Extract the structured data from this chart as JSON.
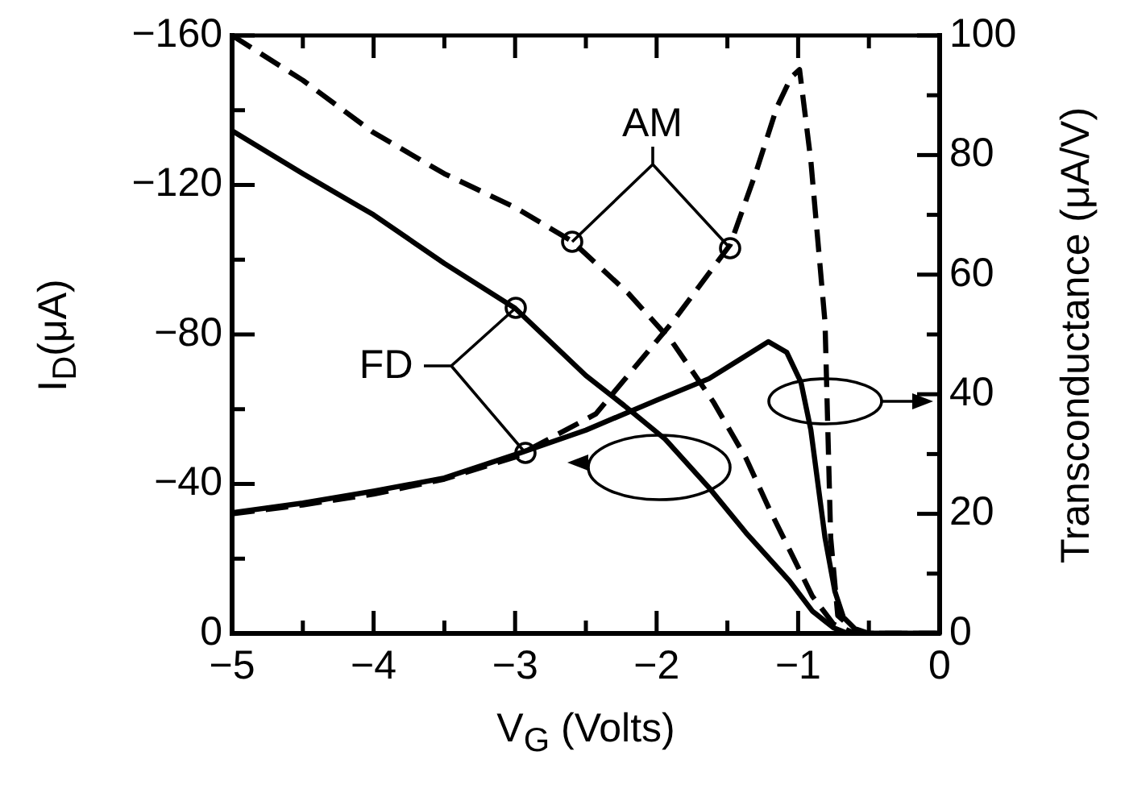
{
  "chart_data": {
    "type": "line",
    "xlabel": "V$_{G}$ (Volts)",
    "ylabel": "I$_{D}$(μA)",
    "y2label": "Transconductance (μA/V)",
    "xlim": [
      -5,
      0
    ],
    "xticks": [
      -5,
      {
        "value": -4.5,
        "label": null
      },
      -4,
      {
        "value": -3.5,
        "label": null
      },
      -3,
      {
        "value": -2.5,
        "label": null
      },
      -2,
      {
        "value": -1.5,
        "label": null
      },
      -1,
      {
        "value": -0.5,
        "label": null
      },
      0
    ],
    "ylim": [
      0,
      -160
    ],
    "yticks": [
      0,
      {
        "value": -20,
        "label": null
      },
      -40,
      {
        "value": -60,
        "label": null
      },
      -80,
      {
        "value": -100,
        "label": null
      },
      -120,
      {
        "value": -140,
        "label": null
      },
      -160
    ],
    "y2lim": [
      0,
      100
    ],
    "y2ticks": [
      0,
      {
        "value": 10,
        "label": null
      },
      20,
      {
        "value": 30,
        "label": null
      },
      40,
      {
        "value": 50,
        "label": null
      },
      60,
      {
        "value": 70,
        "label": null
      },
      80,
      {
        "value": 90,
        "label": null
      },
      100
    ],
    "annotations": [
      {
        "text": "AM",
        "x": -2.6,
        "y": -105
      },
      {
        "text": "FD",
        "x": -3,
        "y": -87
      }
    ],
    "series": [
      {
        "color": "#000000",
        "line_style": "solid",
        "x": [
          -5,
          -4.5,
          -4,
          -3.5,
          -3,
          -2.5,
          -2.23,
          -1.94,
          -1.63,
          -1.37,
          -1.06,
          -0.9,
          -0.75,
          -0.65,
          -0.3,
          0
        ],
        "values": [
          -134.5,
          -123,
          -112,
          -99,
          -87,
          -69,
          -61,
          -52,
          -39,
          -27,
          -14,
          -6,
          -1.5,
          0,
          0,
          0
        ]
      },
      {
        "color": "#000000",
        "line_style": "dashed",
        "x": [
          -5,
          -4.5,
          -4,
          -3.5,
          -3,
          -2.6,
          -2.2,
          -1.89,
          -1.6,
          -1.37,
          -1.2,
          -1.03,
          -0.9,
          -0.75,
          -0.6,
          -0.3,
          0
        ],
        "values": [
          -160,
          -148,
          -134,
          -123,
          -114,
          -105,
          -91,
          -78,
          -62,
          -47,
          -33,
          -20,
          -10,
          -2.5,
          0,
          0,
          0
        ]
      },
      {
        "color": "#000000",
        "line_style": "solid",
        "axis": "y2",
        "x": [
          -5,
          -4.5,
          -4,
          -3.5,
          -3,
          -2.5,
          -2,
          -1.63,
          -1.4,
          -1.21,
          -1.08,
          -0.98,
          -0.91,
          -0.81,
          -0.74,
          -0.68,
          -0.6,
          -0.5,
          0
        ],
        "values": [
          20.2,
          21.8,
          23.8,
          26,
          29.9,
          34,
          39,
          42.6,
          46,
          48.8,
          47,
          42,
          34,
          16,
          7,
          2.7,
          0.8,
          0,
          0
        ]
      },
      {
        "color": "#000000",
        "line_style": "dashed",
        "axis": "y2",
        "x": [
          -5,
          -4.5,
          -4,
          -3.5,
          -3,
          -2.43,
          -1.89,
          -1.48,
          -1.3,
          -1.15,
          -1.05,
          -0.99,
          -0.91,
          -0.81,
          -0.77,
          -0.72,
          -0.6,
          -0.5,
          0
        ],
        "values": [
          20,
          21.5,
          23.3,
          25.8,
          29.5,
          36.7,
          52,
          65,
          77,
          88,
          93,
          94.3,
          79,
          52,
          16,
          3,
          0.5,
          0,
          0
        ]
      }
    ]
  }
}
